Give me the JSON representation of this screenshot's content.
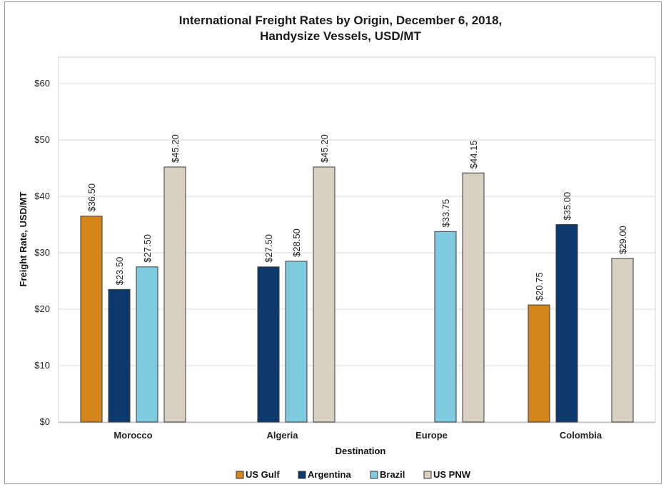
{
  "chart_data": {
    "type": "bar",
    "title_line1": "International Freight Rates by Origin, December 6, 2018,",
    "title_line2": "Handysize Vessels, USD/MT",
    "xlabel": "Destination",
    "ylabel": "Freight Rate, USD/MT",
    "ylim": [
      0,
      60
    ],
    "yticks": [
      "$0",
      "$10",
      "$20",
      "$30",
      "$40",
      "$50",
      "$60"
    ],
    "categories": [
      "Morocco",
      "Algeria",
      "Europe",
      "Colombia"
    ],
    "grid": true,
    "legend_position": "bottom",
    "series": [
      {
        "name": "US Gulf",
        "color": "#d4861b",
        "values": [
          36.5,
          null,
          null,
          20.75
        ],
        "labels": [
          "$36.50",
          null,
          null,
          "$20.75"
        ]
      },
      {
        "name": "Argentina",
        "color": "#0d3a6e",
        "values": [
          23.5,
          27.5,
          null,
          35.0
        ],
        "labels": [
          "$23.50",
          "$27.50",
          null,
          "$35.00"
        ]
      },
      {
        "name": "Brazil",
        "color": "#7ecbe0",
        "values": [
          27.5,
          28.5,
          33.75,
          null
        ],
        "labels": [
          "$27.50",
          "$28.50",
          "$33.75",
          null
        ]
      },
      {
        "name": "US PNW",
        "color": "#d9d0c2",
        "values": [
          45.2,
          45.2,
          44.15,
          29.0
        ],
        "labels": [
          "$45.20",
          "$45.20",
          "$44.15",
          "$29.00"
        ]
      }
    ]
  }
}
